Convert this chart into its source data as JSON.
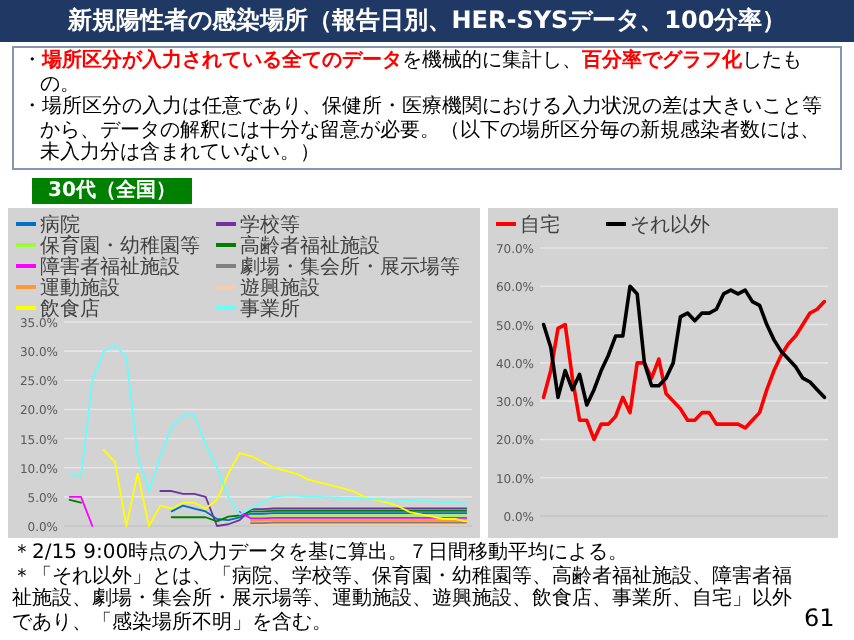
{
  "chart_data": [
    {
      "type": "line",
      "title": "新規陽性者の感染場所（報告日別、HER-SYSデータ、100分率）",
      "subtitle": "30代（全国）",
      "annotations": [
        "・**場所区分が入力されている全てのデータ**を機械的に集計し、**百分率でグラフ化**したもの。",
        "・場所区分の入力は任意であり、保健所・医療機関における入力状況の差は大きいこと等から、データの解釈には十分な留意が必要。（以下の場所区分毎の新規感染者数には、未入力分は含まれていない。）",
        "＊2/15 9:00時点の入力データを基に算出。７日間移動平均による。",
        "＊「それ以外」とは、「病院、学校等、保育園・幼稚園等、高齢者福祉施設、障害者福祉施設、劇場・集会所・展示場等、運動施設、遊興施設、飲食店、事業所、自宅」以外であり、「感染場所不明」を含む。",
        "61"
      ],
      "categories": [
        null,
        null,
        null,
        null,
        null,
        null,
        null,
        null,
        null,
        null,
        null,
        null,
        null,
        null,
        null,
        null,
        null,
        null,
        null,
        null,
        null,
        null,
        null,
        null,
        null,
        null,
        null,
        null,
        null,
        null,
        null,
        null,
        null,
        null,
        null,
        null
      ],
      "ylim": [
        0,
        35
      ],
      "yticks": [
        {
          "value": 0,
          "label": "0.0%"
        },
        {
          "value": 5,
          "label": "5.0%"
        },
        {
          "value": 10,
          "label": "10.0%"
        },
        {
          "value": 15,
          "label": "15.0%"
        },
        {
          "value": 20,
          "label": "20.0%"
        },
        {
          "value": 25,
          "label": "25.0%"
        },
        {
          "value": 30,
          "label": "30.0%"
        },
        {
          "value": 35,
          "label": "35.0%"
        }
      ],
      "grid": "y",
      "legend": "top",
      "marker": "none",
      "series": [
        {
          "name": "病院",
          "color": "#0070c0",
          "values": [
            null,
            null,
            null,
            null,
            null,
            null,
            null,
            null,
            null,
            2.5,
            3.5,
            3,
            2.5,
            1.2,
            1,
            1.5,
            2.1,
            2.1,
            2.2,
            2.2,
            2.2,
            2.2,
            2.2,
            2.2,
            2.2,
            2.2,
            2.2,
            2.2,
            2.2,
            2.2,
            2.2,
            2.2,
            2.2,
            2.2,
            2.2,
            2.2
          ]
        },
        {
          "name": "学校等",
          "color": "#7030a0",
          "values": [
            null,
            null,
            null,
            null,
            null,
            null,
            null,
            null,
            6,
            6,
            5.5,
            5.5,
            5,
            0,
            0.3,
            1,
            2.9,
            2.9,
            3,
            3,
            3,
            3,
            3,
            3,
            3,
            3,
            3,
            3,
            3,
            3,
            3,
            3,
            3,
            3,
            3,
            3
          ]
        },
        {
          "name": "保育園・幼稚園等",
          "color": "#99ff33",
          "values": [
            null,
            null,
            null,
            null,
            null,
            null,
            null,
            null,
            null,
            null,
            null,
            null,
            null,
            null,
            null,
            null,
            1.7,
            1.7,
            1.8,
            1.8,
            1.8,
            1.8,
            1.8,
            1.8,
            1.8,
            1.8,
            1.8,
            1.8,
            1.8,
            1.8,
            1.8,
            1.8,
            1.8,
            1.8,
            1.8,
            1.8
          ]
        },
        {
          "name": "高齢者福祉施設",
          "color": "#008000",
          "values": [
            4.5,
            4,
            null,
            null,
            null,
            null,
            null,
            null,
            null,
            1.5,
            1.5,
            1.5,
            1.5,
            0.8,
            1.6,
            1.8,
            2.5,
            2.5,
            2.6,
            2.6,
            2.6,
            2.6,
            2.6,
            2.6,
            2.6,
            2.6,
            2.6,
            2.6,
            2.6,
            2.6,
            2.6,
            2.6,
            2.6,
            2.6,
            2.6,
            2.6
          ]
        },
        {
          "name": "障害者福祉施設",
          "color": "#ff00ff",
          "values": [
            5,
            5,
            0,
            null,
            null,
            null,
            null,
            null,
            null,
            null,
            null,
            null,
            null,
            null,
            null,
            2.4,
            1.3,
            1.3,
            1.4,
            1.4,
            1.4,
            1.4,
            1.4,
            1.4,
            1.4,
            1.4,
            1.4,
            1.4,
            1.4,
            1.4,
            1.4,
            1.4,
            1.4,
            1.4,
            1.4,
            1.4
          ]
        },
        {
          "name": "劇場・集会所・展示場等",
          "color": "#808080",
          "values": [
            null,
            null,
            null,
            null,
            null,
            null,
            null,
            null,
            null,
            null,
            null,
            null,
            null,
            null,
            null,
            null,
            0.5,
            0.5,
            0.6,
            0.6,
            0.6,
            0.6,
            0.6,
            0.6,
            0.6,
            0.6,
            0.6,
            0.6,
            0.6,
            0.6,
            0.6,
            0.6,
            0.6,
            0.6,
            0.6,
            0.6
          ]
        },
        {
          "name": "運動施設",
          "color": "#ff9933",
          "values": [
            null,
            null,
            null,
            null,
            null,
            null,
            null,
            null,
            null,
            null,
            null,
            null,
            null,
            null,
            null,
            null,
            0.9,
            0.9,
            1,
            1,
            1,
            1,
            1,
            1,
            1,
            1,
            1,
            1,
            1,
            1,
            1,
            1,
            1,
            1,
            1,
            1
          ]
        },
        {
          "name": "遊興施設",
          "color": "#f8cbad",
          "values": [
            null,
            null,
            null,
            null,
            null,
            null,
            null,
            null,
            null,
            null,
            null,
            null,
            null,
            null,
            null,
            null,
            0.1,
            0.1,
            0.2,
            0.2,
            0.2,
            0.2,
            0.2,
            0.2,
            0.2,
            0.2,
            0.2,
            0.2,
            0.2,
            0.2,
            0.2,
            0.2,
            0.2,
            0.2,
            0.2,
            0.2
          ]
        },
        {
          "name": "飲食店",
          "color": "#ffff00",
          "values": [
            null,
            null,
            null,
            13,
            11,
            0,
            9,
            0,
            3.5,
            3,
            4,
            4,
            3,
            4.5,
            9,
            12.5,
            12,
            11,
            10,
            9.5,
            9,
            8,
            7.5,
            7,
            6.5,
            6,
            5,
            4.5,
            4,
            3.4,
            2.4,
            2,
            1.6,
            1.2,
            1.2,
            0.8
          ]
        },
        {
          "name": "事業所",
          "color": "#66ffff",
          "values": [
            9,
            8.5,
            25,
            30,
            31,
            29,
            12,
            6,
            12,
            17,
            19,
            19,
            14,
            10,
            5,
            2,
            3,
            4,
            5,
            5.2,
            5.2,
            5,
            5,
            4.9,
            4.8,
            4.8,
            4.7,
            4.6,
            4.5,
            4.5,
            4.4,
            4.3,
            4.2,
            4.1,
            4,
            3.8
          ]
        }
      ]
    },
    {
      "type": "line",
      "categories": [
        null,
        null,
        null,
        null,
        null,
        null,
        null,
        null,
        null,
        null,
        null,
        null,
        null,
        null,
        null,
        null,
        null,
        null,
        null,
        null,
        null,
        null,
        null,
        null,
        null,
        null,
        null,
        null,
        null,
        null,
        null,
        null,
        null,
        null,
        null,
        null,
        null,
        null,
        null,
        null
      ],
      "ylim": [
        0,
        70
      ],
      "yticks": [
        {
          "value": 0,
          "label": "0.0%"
        },
        {
          "value": 10,
          "label": "10.0%"
        },
        {
          "value": 20,
          "label": "20.0%"
        },
        {
          "value": 30,
          "label": "30.0%"
        },
        {
          "value": 40,
          "label": "40.0%"
        },
        {
          "value": 50,
          "label": "50.0%"
        },
        {
          "value": 60,
          "label": "60.0%"
        },
        {
          "value": 70,
          "label": "70.0%"
        }
      ],
      "grid": "y",
      "legend": "top",
      "marker": "none",
      "series": [
        {
          "name": "自宅",
          "color": "#ff0000",
          "values": [
            31,
            38,
            49,
            50,
            36,
            25,
            25,
            20,
            24,
            24,
            26,
            31,
            27,
            40,
            40,
            36,
            41,
            32,
            30,
            28,
            25,
            25,
            27,
            27,
            24,
            24,
            24,
            24,
            23,
            25,
            27,
            33,
            38,
            42,
            45,
            47,
            50,
            53,
            54,
            56
          ]
        },
        {
          "name": "それ以外",
          "color": "#000000",
          "values": [
            50,
            44,
            31,
            38,
            33,
            37,
            29,
            33,
            38,
            42,
            47,
            47,
            60,
            58,
            40,
            34,
            34,
            36,
            40,
            52,
            53,
            51,
            53,
            53,
            54,
            58,
            59,
            58,
            59,
            56,
            55,
            50,
            46,
            43,
            41,
            39,
            36,
            35,
            33,
            31
          ]
        }
      ]
    }
  ]
}
